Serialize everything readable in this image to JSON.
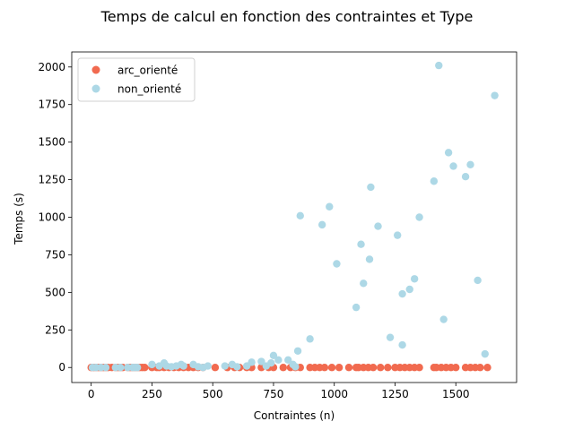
{
  "chart_data": {
    "type": "scatter",
    "title": "Temps de calcul en fonction des contraintes et Type",
    "xlabel": "Contraintes (n)",
    "ylabel": "Temps (s)",
    "xlim": [
      -80,
      1750
    ],
    "ylim": [
      -100,
      2100
    ],
    "xticks": [
      0,
      250,
      500,
      750,
      1000,
      1250,
      1500
    ],
    "yticks": [
      0,
      250,
      500,
      750,
      1000,
      1250,
      1500,
      1750,
      2000
    ],
    "grid": false,
    "legend_position": "top-left",
    "series": [
      {
        "name": "arc_orienté",
        "color": "#f16a4f",
        "points": [
          [
            0,
            0
          ],
          [
            10,
            0
          ],
          [
            20,
            0
          ],
          [
            30,
            0
          ],
          [
            40,
            0
          ],
          [
            50,
            0
          ],
          [
            60,
            0
          ],
          [
            70,
            0
          ],
          [
            85,
            0
          ],
          [
            100,
            0
          ],
          [
            110,
            0
          ],
          [
            120,
            0
          ],
          [
            130,
            0
          ],
          [
            150,
            0
          ],
          [
            160,
            0
          ],
          [
            170,
            0
          ],
          [
            180,
            0
          ],
          [
            190,
            0
          ],
          [
            200,
            0
          ],
          [
            210,
            0
          ],
          [
            220,
            0
          ],
          [
            250,
            0
          ],
          [
            270,
            0
          ],
          [
            280,
            0
          ],
          [
            300,
            0
          ],
          [
            320,
            0
          ],
          [
            340,
            0
          ],
          [
            360,
            0
          ],
          [
            380,
            0
          ],
          [
            400,
            0
          ],
          [
            420,
            0
          ],
          [
            440,
            0
          ],
          [
            460,
            0
          ],
          [
            510,
            0
          ],
          [
            560,
            0
          ],
          [
            590,
            0
          ],
          [
            610,
            0
          ],
          [
            640,
            0
          ],
          [
            660,
            0
          ],
          [
            700,
            0
          ],
          [
            730,
            0
          ],
          [
            750,
            0
          ],
          [
            790,
            0
          ],
          [
            820,
            0
          ],
          [
            840,
            0
          ],
          [
            860,
            0
          ],
          [
            900,
            0
          ],
          [
            920,
            0
          ],
          [
            940,
            0
          ],
          [
            960,
            0
          ],
          [
            990,
            0
          ],
          [
            1020,
            0
          ],
          [
            1060,
            0
          ],
          [
            1090,
            0
          ],
          [
            1100,
            0
          ],
          [
            1120,
            0
          ],
          [
            1140,
            0
          ],
          [
            1160,
            0
          ],
          [
            1190,
            0
          ],
          [
            1220,
            0
          ],
          [
            1250,
            0
          ],
          [
            1270,
            0
          ],
          [
            1290,
            0
          ],
          [
            1310,
            0
          ],
          [
            1330,
            0
          ],
          [
            1350,
            0
          ],
          [
            1410,
            0
          ],
          [
            1420,
            0
          ],
          [
            1440,
            0
          ],
          [
            1460,
            0
          ],
          [
            1480,
            0
          ],
          [
            1500,
            0
          ],
          [
            1540,
            0
          ],
          [
            1560,
            0
          ],
          [
            1580,
            0
          ],
          [
            1600,
            0
          ],
          [
            1630,
            0
          ]
        ]
      },
      {
        "name": "non_orienté",
        "color": "#add8e6",
        "points": [
          [
            5,
            0
          ],
          [
            20,
            0
          ],
          [
            40,
            0
          ],
          [
            60,
            0
          ],
          [
            100,
            0
          ],
          [
            120,
            0
          ],
          [
            150,
            0
          ],
          [
            170,
            0
          ],
          [
            180,
            0
          ],
          [
            190,
            0
          ],
          [
            250,
            20
          ],
          [
            280,
            10
          ],
          [
            300,
            30
          ],
          [
            310,
            10
          ],
          [
            330,
            5
          ],
          [
            350,
            10
          ],
          [
            370,
            20
          ],
          [
            380,
            10
          ],
          [
            420,
            20
          ],
          [
            440,
            5
          ],
          [
            460,
            0
          ],
          [
            480,
            10
          ],
          [
            550,
            10
          ],
          [
            580,
            20
          ],
          [
            600,
            5
          ],
          [
            640,
            10
          ],
          [
            660,
            35
          ],
          [
            700,
            40
          ],
          [
            720,
            10
          ],
          [
            740,
            30
          ],
          [
            750,
            80
          ],
          [
            770,
            50
          ],
          [
            810,
            50
          ],
          [
            830,
            20
          ],
          [
            840,
            5
          ],
          [
            850,
            110
          ],
          [
            860,
            1010
          ],
          [
            900,
            190
          ],
          [
            950,
            950
          ],
          [
            980,
            1070
          ],
          [
            1010,
            690
          ],
          [
            1090,
            400
          ],
          [
            1110,
            820
          ],
          [
            1120,
            560
          ],
          [
            1145,
            720
          ],
          [
            1150,
            1200
          ],
          [
            1180,
            940
          ],
          [
            1230,
            200
          ],
          [
            1260,
            880
          ],
          [
            1280,
            490
          ],
          [
            1280,
            150
          ],
          [
            1310,
            520
          ],
          [
            1330,
            590
          ],
          [
            1350,
            1000
          ],
          [
            1410,
            1240
          ],
          [
            1430,
            2010
          ],
          [
            1450,
            320
          ],
          [
            1470,
            1430
          ],
          [
            1490,
            1340
          ],
          [
            1540,
            1270
          ],
          [
            1560,
            1350
          ],
          [
            1590,
            580
          ],
          [
            1620,
            90
          ],
          [
            1660,
            1810
          ]
        ]
      }
    ]
  }
}
